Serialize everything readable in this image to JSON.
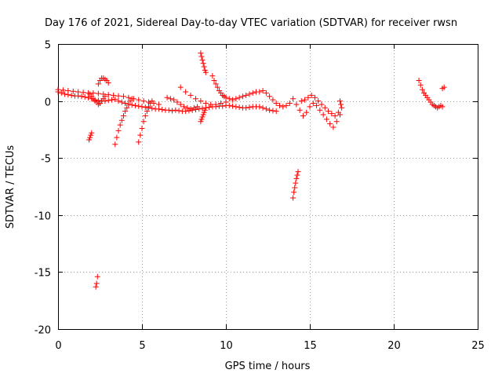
{
  "chart_data": {
    "type": "scatter",
    "title": "Day 176 of 2021, Sidereal Day-to-day VTEC variation (SDTVAR) for receiver rwsn",
    "xlabel": "GPS time / hours",
    "ylabel": "SDTVAR / TECUs",
    "xlim": [
      0,
      25
    ],
    "ylim": [
      -20,
      5
    ],
    "xticks": [
      "0",
      "5",
      "10",
      "15",
      "20",
      "25"
    ],
    "yticks": [
      "5",
      "0",
      "-5",
      "-10",
      "-15",
      "-20"
    ],
    "grid": true,
    "marker": "+",
    "color": "#ff0000",
    "series": [
      {
        "name": "band-main",
        "x": [
          0.0,
          0.2,
          0.4,
          0.6,
          0.8,
          1.0,
          1.2,
          1.4,
          1.6,
          1.8,
          2.0,
          2.2,
          2.4,
          2.6,
          2.8,
          3.0,
          3.2,
          3.4,
          3.6,
          3.8,
          4.0,
          4.2,
          4.4,
          4.6,
          4.8,
          5.0,
          5.2,
          5.4,
          5.6,
          5.8,
          6.0,
          6.2,
          6.4,
          6.6,
          6.8,
          7.0,
          7.2,
          7.4,
          7.6,
          7.8,
          8.0,
          8.2,
          8.4,
          8.6,
          8.8,
          9.0,
          9.2,
          9.4,
          9.6,
          9.8,
          10.0,
          10.2,
          10.4,
          10.6,
          10.8,
          11.0,
          11.2,
          11.4,
          11.6,
          11.8,
          12.0,
          12.2,
          12.4,
          12.6,
          12.8,
          13.0
        ],
        "y": [
          0.8,
          0.7,
          0.6,
          0.55,
          0.5,
          0.45,
          0.45,
          0.4,
          0.35,
          0.3,
          0.2,
          0.1,
          0.05,
          0.0,
          0.0,
          0.05,
          0.1,
          0.15,
          0.0,
          -0.1,
          -0.2,
          -0.3,
          -0.35,
          -0.4,
          -0.45,
          -0.5,
          -0.55,
          -0.6,
          -0.65,
          -0.7,
          -0.7,
          -0.75,
          -0.8,
          -0.8,
          -0.85,
          -0.8,
          -0.85,
          -0.9,
          -0.9,
          -0.85,
          -0.8,
          -0.75,
          -0.7,
          -0.65,
          -0.6,
          -0.55,
          -0.5,
          -0.5,
          -0.45,
          -0.45,
          -0.4,
          -0.4,
          -0.45,
          -0.5,
          -0.55,
          -0.6,
          -0.6,
          -0.55,
          -0.5,
          -0.5,
          -0.5,
          -0.6,
          -0.7,
          -0.8,
          -0.85,
          -0.9
        ]
      },
      {
        "name": "band-upper",
        "x": [
          0.0,
          0.3,
          0.6,
          0.9,
          1.2,
          1.5,
          1.8,
          2.1,
          2.4,
          2.7,
          3.0,
          3.3,
          3.6,
          3.9,
          4.2,
          4.5,
          4.8,
          5.1,
          5.4,
          5.7,
          6.0
        ],
        "y": [
          1.0,
          0.95,
          0.9,
          0.85,
          0.8,
          0.75,
          0.7,
          0.7,
          0.65,
          0.6,
          0.55,
          0.5,
          0.45,
          0.4,
          0.3,
          0.2,
          0.1,
          0.0,
          -0.1,
          -0.2,
          -0.3
        ]
      },
      {
        "name": "arc-1",
        "x": [
          1.9,
          2.0,
          2.1,
          2.2,
          2.3,
          2.4,
          2.5,
          2.6,
          2.7,
          2.8
        ],
        "y": [
          0.6,
          0.4,
          0.2,
          0.0,
          -0.1,
          -0.3,
          -0.2,
          0.0,
          0.2,
          0.4
        ]
      },
      {
        "name": "arc-2",
        "x": [
          2.4,
          2.5,
          2.6,
          2.7,
          2.8,
          2.9,
          3.0
        ],
        "y": [
          1.5,
          1.8,
          2.0,
          2.0,
          1.9,
          1.8,
          1.6
        ]
      },
      {
        "name": "fall-1",
        "x": [
          3.4,
          3.5,
          3.6,
          3.7,
          3.8,
          3.9,
          4.0,
          4.1,
          4.2,
          4.3,
          4.4
        ],
        "y": [
          -3.8,
          -3.2,
          -2.6,
          -2.1,
          -1.7,
          -1.3,
          -0.9,
          -0.6,
          -0.3,
          0.0,
          0.2
        ]
      },
      {
        "name": "fall-2",
        "x": [
          4.8,
          4.9,
          5.0,
          5.1,
          5.2,
          5.3,
          5.4,
          5.5,
          5.6
        ],
        "y": [
          -3.6,
          -3.0,
          -2.4,
          -1.8,
          -1.3,
          -0.9,
          -0.5,
          -0.2,
          0.0
        ]
      },
      {
        "name": "drop-2",
        "x": [
          1.85,
          1.9,
          1.95,
          2.0
        ],
        "y": [
          -3.4,
          -3.2,
          -3.0,
          -2.8
        ]
      },
      {
        "name": "outlier",
        "x": [
          2.25,
          2.3,
          2.35
        ],
        "y": [
          -16.3,
          -16.0,
          -15.4
        ]
      },
      {
        "name": "rise-1",
        "x": [
          7.3,
          7.6,
          7.9,
          8.2,
          8.5,
          8.8,
          9.1,
          9.4,
          9.7,
          10.0
        ],
        "y": [
          1.2,
          0.8,
          0.5,
          0.2,
          0.0,
          -0.2,
          -0.3,
          -0.3,
          -0.2,
          -0.1
        ]
      },
      {
        "name": "spike-a",
        "x": [
          8.5,
          8.55,
          8.6,
          8.65,
          8.7,
          8.75,
          8.8
        ],
        "y": [
          4.2,
          3.9,
          3.6,
          3.3,
          3.0,
          2.7,
          2.5
        ]
      },
      {
        "name": "spike-b",
        "x": [
          9.2,
          9.3,
          9.4,
          9.5,
          9.6,
          9.7,
          9.8,
          9.9,
          10.0,
          10.2,
          10.4,
          10.6,
          10.8,
          11.0,
          11.2,
          11.4,
          11.6,
          11.8,
          12.0
        ],
        "y": [
          2.2,
          1.8,
          1.5,
          1.2,
          0.9,
          0.7,
          0.5,
          0.4,
          0.3,
          0.2,
          0.1,
          0.2,
          0.3,
          0.4,
          0.5,
          0.6,
          0.7,
          0.8,
          0.8
        ]
      },
      {
        "name": "drop-1",
        "x": [
          8.5,
          8.55,
          8.6,
          8.65,
          8.7,
          8.75
        ],
        "y": [
          -1.8,
          -1.6,
          -1.4,
          -1.2,
          -1.0,
          -0.8
        ]
      },
      {
        "name": "mid-cluster-1",
        "x": [
          6.5,
          6.7,
          6.9,
          7.1,
          7.3,
          7.5,
          7.7,
          7.9,
          8.1,
          8.3
        ],
        "y": [
          0.3,
          0.2,
          0.1,
          -0.1,
          -0.3,
          -0.5,
          -0.6,
          -0.7,
          -0.6,
          -0.5
        ]
      },
      {
        "name": "loop-12",
        "x": [
          12.2,
          12.4,
          12.6,
          12.8,
          13.0,
          13.2,
          13.4,
          13.6,
          13.8
        ],
        "y": [
          0.9,
          0.7,
          0.4,
          0.1,
          -0.2,
          -0.4,
          -0.5,
          -0.4,
          -0.2
        ]
      },
      {
        "name": "cluster-14-16",
        "x": [
          14.0,
          14.2,
          14.4,
          14.6,
          14.8,
          15.0,
          15.2,
          15.4,
          15.6,
          15.8,
          16.0,
          16.2,
          16.4,
          16.6,
          16.8
        ],
        "y": [
          0.2,
          -0.3,
          -0.8,
          -1.3,
          -1.0,
          -0.5,
          -0.2,
          -0.4,
          -0.8,
          -1.2,
          -1.6,
          -2.0,
          -2.3,
          -1.8,
          -1.2
        ]
      },
      {
        "name": "cluster-14-16b",
        "x": [
          14.5,
          14.7,
          14.9,
          15.1,
          15.3,
          15.5,
          15.7,
          15.9,
          16.1,
          16.3,
          16.5,
          16.7
        ],
        "y": [
          0.0,
          0.1,
          0.3,
          0.5,
          0.3,
          0.0,
          -0.3,
          -0.6,
          -0.9,
          -1.1,
          -1.3,
          -1.0
        ]
      },
      {
        "name": "edge-16.8",
        "x": [
          16.8,
          16.85,
          16.9
        ],
        "y": [
          0.0,
          -0.3,
          -0.6
        ]
      },
      {
        "name": "drop-14",
        "x": [
          14.0,
          14.05,
          14.1,
          14.15,
          14.2,
          14.25,
          14.3
        ],
        "y": [
          -8.5,
          -8.0,
          -7.6,
          -7.2,
          -6.8,
          -6.5,
          -6.2
        ]
      },
      {
        "name": "late-cluster",
        "x": [
          21.5,
          21.6,
          21.7,
          21.8,
          21.9,
          22.0,
          22.1,
          22.2,
          22.3,
          22.4,
          22.5,
          22.6,
          22.7,
          22.8,
          22.9
        ],
        "y": [
          1.8,
          1.4,
          1.0,
          0.7,
          0.5,
          0.3,
          0.1,
          -0.1,
          -0.3,
          -0.4,
          -0.5,
          -0.6,
          -0.5,
          -0.4,
          -0.5
        ]
      },
      {
        "name": "late-point",
        "x": [
          22.9,
          23.0
        ],
        "y": [
          1.1,
          1.2
        ]
      }
    ]
  }
}
